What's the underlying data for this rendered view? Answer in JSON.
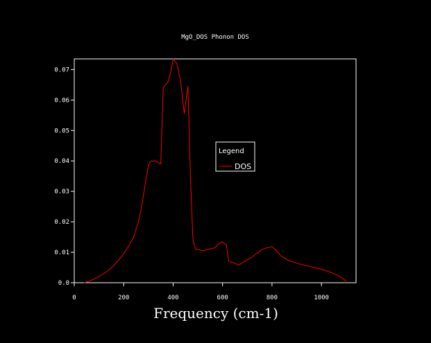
{
  "chart_data": {
    "type": "line",
    "title": "MgO_DOS Phonon DOS",
    "xlabel": "Frequency (cm-1)",
    "ylabel": "",
    "xlim": [
      0,
      1140
    ],
    "ylim": [
      0,
      0.0735
    ],
    "xticks": [
      0,
      200,
      400,
      600,
      800,
      1000
    ],
    "xtick_labels": [
      "0",
      "200",
      "400",
      "600",
      "800",
      "1000"
    ],
    "yticks": [
      0,
      0.01,
      0.02,
      0.03,
      0.04,
      0.05,
      0.06,
      0.07
    ],
    "ytick_labels": [
      "0.0",
      "0.01",
      "0.02",
      "0.03",
      "0.04",
      "0.05",
      "0.06",
      "0.07"
    ],
    "grid": false,
    "legend": {
      "title": "Legend",
      "placement": "center-right"
    },
    "colors": {
      "background": "#000000",
      "axes": "#ffffff",
      "series": "#ff0000"
    },
    "series": [
      {
        "name": "DOS",
        "x": [
          40,
          60,
          80,
          100,
          120,
          140,
          160,
          180,
          200,
          220,
          240,
          260,
          275,
          290,
          300,
          310,
          330,
          350,
          360,
          380,
          390,
          400,
          415,
          430,
          445,
          460,
          470,
          480,
          490,
          500,
          520,
          540,
          570,
          580,
          595,
          615,
          625,
          645,
          665,
          690,
          720,
          745,
          760,
          780,
          800,
          815,
          835,
          870,
          910,
          960,
          1010,
          1050,
          1080,
          1100
        ],
        "y": [
          0.0,
          0.0005,
          0.0012,
          0.002,
          0.003,
          0.0042,
          0.0057,
          0.0075,
          0.0095,
          0.012,
          0.015,
          0.02,
          0.026,
          0.034,
          0.0385,
          0.04,
          0.04,
          0.039,
          0.064,
          0.066,
          0.069,
          0.0735,
          0.072,
          0.0665,
          0.0555,
          0.0645,
          0.035,
          0.0145,
          0.011,
          0.011,
          0.0105,
          0.011,
          0.0115,
          0.0125,
          0.0135,
          0.0125,
          0.007,
          0.0065,
          0.0058,
          0.007,
          0.0085,
          0.01,
          0.011,
          0.0115,
          0.0118,
          0.0108,
          0.0088,
          0.0072,
          0.0062,
          0.0052,
          0.0042,
          0.003,
          0.0018,
          0.0005
        ]
      }
    ]
  }
}
